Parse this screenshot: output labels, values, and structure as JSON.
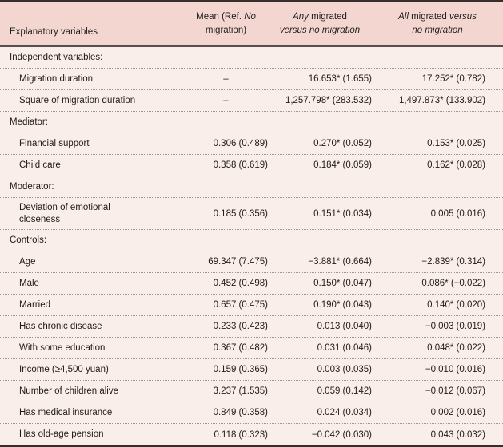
{
  "table": {
    "header": {
      "col1": "Explanatory variables",
      "col2_lines": [
        [
          {
            "t": "Mean (Ref. ",
            "i": false
          },
          {
            "t": "No",
            "i": true
          }
        ],
        [
          {
            "t": "migration)",
            "i": false
          }
        ]
      ],
      "col3_lines": [
        [
          {
            "t": "Any",
            "i": true
          },
          {
            "t": " migrated",
            "i": false
          }
        ],
        [
          {
            "t": "versus no migration",
            "i": true
          }
        ]
      ],
      "col4_lines": [
        [
          {
            "t": "All",
            "i": true
          },
          {
            "t": " migrated ",
            "i": false
          },
          {
            "t": "versus",
            "i": true
          }
        ],
        [
          {
            "t": "no migration",
            "i": true
          }
        ]
      ]
    },
    "rows": [
      {
        "type": "section",
        "label": "Independent variables:",
        "values": [
          "",
          "",
          ""
        ]
      },
      {
        "type": "item",
        "label": "Migration duration",
        "values": [
          "–",
          "16.653* (1.655)",
          "17.252* (0.782)"
        ]
      },
      {
        "type": "item",
        "label": "Square of migration duration",
        "values": [
          "–",
          "1,257.798* (283.532)",
          "1,497.873* (133.902)"
        ]
      },
      {
        "type": "section",
        "label": "Mediator:",
        "values": [
          "",
          "",
          ""
        ]
      },
      {
        "type": "item",
        "label": "Financial support",
        "values": [
          "0.306 (0.489)",
          "0.270* (0.052)",
          "0.153* (0.025)"
        ]
      },
      {
        "type": "item",
        "label": "Child care",
        "values": [
          "0.358 (0.619)",
          "0.184* (0.059)",
          "0.162* (0.028)"
        ]
      },
      {
        "type": "section",
        "label": "Moderator:",
        "values": [
          "",
          "",
          ""
        ]
      },
      {
        "type": "item",
        "label": "Deviation of emotional\ncloseness",
        "two_line": true,
        "values": [
          "0.185 (0.356)",
          "0.151* (0.034)",
          "0.005 (0.016)"
        ]
      },
      {
        "type": "section",
        "label": "Controls:",
        "values": [
          "",
          "",
          ""
        ]
      },
      {
        "type": "item",
        "label": "Age",
        "values": [
          "69.347 (7.475)",
          "−3.881* (0.664)",
          "−2.839* (0.314)"
        ]
      },
      {
        "type": "item",
        "label": "Male",
        "values": [
          "0.452 (0.498)",
          "0.150* (0.047)",
          "0.086* (−0.022)"
        ]
      },
      {
        "type": "item",
        "label": "Married",
        "values": [
          "0.657 (0.475)",
          "0.190* (0.043)",
          "0.140* (0.020)"
        ]
      },
      {
        "type": "item",
        "label": "Has chronic disease",
        "values": [
          "0.233 (0.423)",
          "0.013 (0.040)",
          "−0.003 (0.019)"
        ]
      },
      {
        "type": "item",
        "label": "With some education",
        "values": [
          "0.367 (0.482)",
          "0.031 (0.046)",
          "0.048* (0.022)"
        ]
      },
      {
        "type": "item",
        "label": "Income (≥4,500 yuan)",
        "values": [
          "0.159 (0.365)",
          "0.003 (0.035)",
          "−0.010 (0.016)"
        ]
      },
      {
        "type": "item",
        "label": "Number of children alive",
        "values": [
          "3.237 (1.535)",
          "0.059 (0.142)",
          "−0.012 (0.067)"
        ]
      },
      {
        "type": "item",
        "label": "Has medical insurance",
        "values": [
          "0.849 (0.358)",
          "0.024 (0.034)",
          "0.002 (0.016)"
        ]
      },
      {
        "type": "item",
        "label": "Has old-age pension",
        "values": [
          "0.118 (0.323)",
          "−0.042 (0.030)",
          "0.043 (0.032)"
        ]
      }
    ],
    "colors": {
      "header_bg": "#f4d6d1",
      "body_bg": "#faeeea",
      "rule_dark": "#352e2a",
      "rule_dotted": "#9e9591"
    }
  }
}
